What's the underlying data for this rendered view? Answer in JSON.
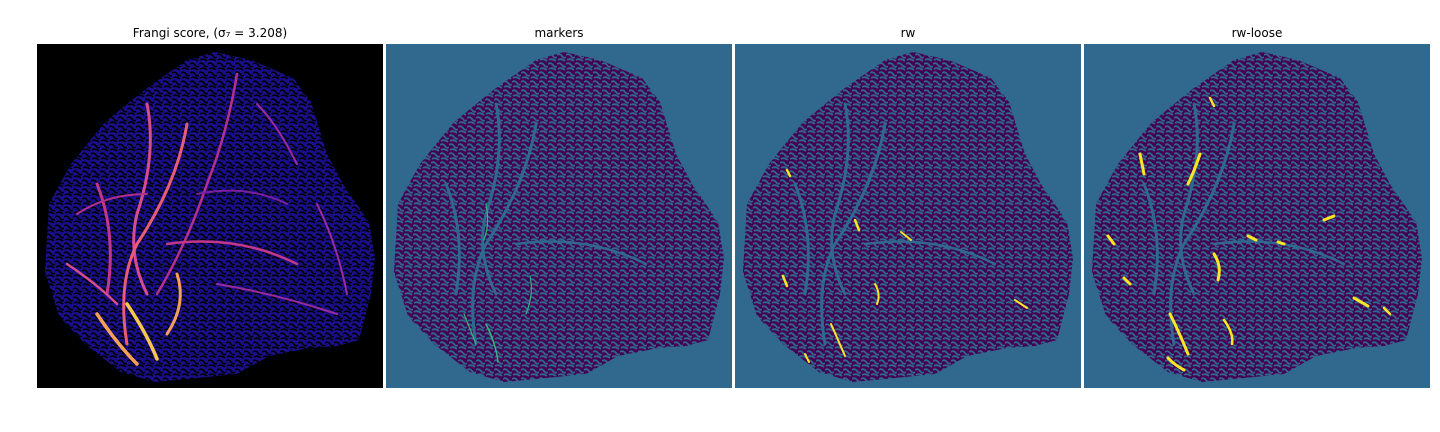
{
  "panels": [
    {
      "title": "Frangi score, (σ₇ = 3.208)"
    },
    {
      "title": "markers"
    },
    {
      "title": "rw"
    },
    {
      "title": "rw-loose"
    }
  ],
  "colors": {
    "frangi_background": "#000000",
    "frangi_tissue": "#1a0f8a",
    "frangi_vessel_low": "#7b1fa2",
    "frangi_vessel_high": "#f9c74f",
    "label_background": "#31688e",
    "label_tissue": "#440154",
    "label_marker": "#35b779",
    "label_vessel": "#fde725"
  }
}
